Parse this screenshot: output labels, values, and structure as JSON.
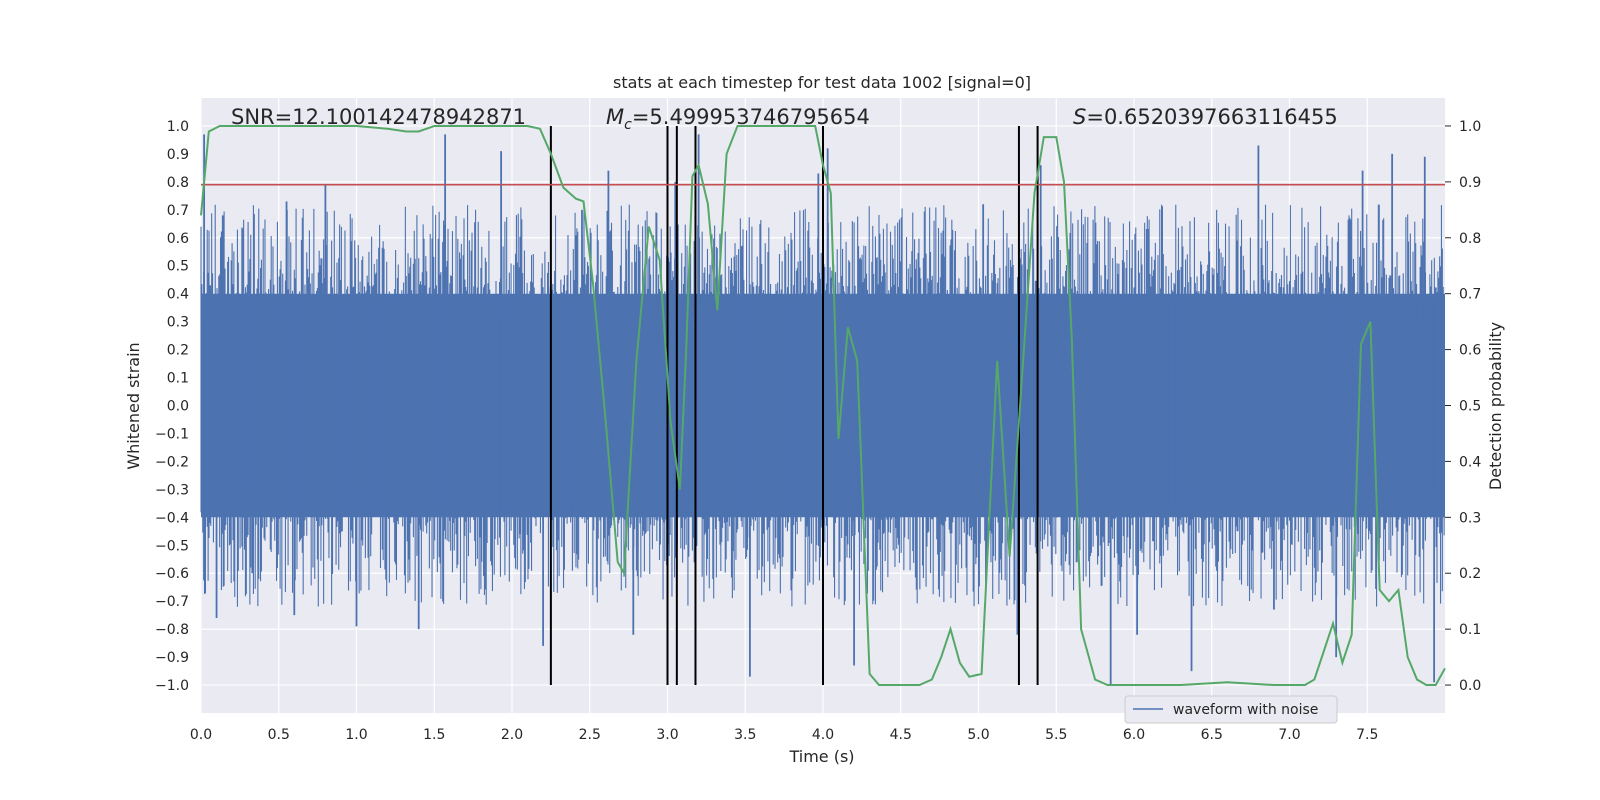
{
  "chart_data": {
    "type": "line",
    "title": "stats at each timestep for test data 1002 [signal=0]",
    "xlabel": "Time (s)",
    "ylabel_left": "Whitened strain",
    "ylabel_right": "Detection probability",
    "xlim": [
      0.0,
      8.0
    ],
    "ylim_left": [
      -1.1,
      1.1
    ],
    "ylim_right": [
      -0.05,
      1.05
    ],
    "xticks": [
      "0.0",
      "0.5",
      "1.0",
      "1.5",
      "2.0",
      "2.5",
      "3.0",
      "3.5",
      "4.0",
      "4.5",
      "5.0",
      "5.5",
      "6.0",
      "6.5",
      "7.0",
      "7.5"
    ],
    "yticks_left": [
      "1.0",
      "0.9",
      "0.8",
      "0.7",
      "0.6",
      "0.5",
      "0.4",
      "0.3",
      "0.2",
      "0.1",
      "0.0",
      "−0.1",
      "−0.2",
      "−0.3",
      "−0.4",
      "−0.5",
      "−0.6",
      "−0.7",
      "−0.8",
      "−0.9",
      "−1.0"
    ],
    "yticks_right": [
      "1.0",
      "0.9",
      "0.8",
      "0.7",
      "0.6",
      "0.5",
      "0.4",
      "0.3",
      "0.2",
      "0.1",
      "0.0"
    ],
    "grid": true,
    "legend": {
      "label": "waveform with noise",
      "location": "lower-right"
    },
    "annotations": {
      "snr": "SNR=12.100142478942871",
      "mc_symbol": "M",
      "mc_sub": "c",
      "mc_value": "=5.499953746795654",
      "s_symbol": "S",
      "s_value": "=0.6520397663116455"
    },
    "colors": {
      "waveform": "#4c72b0",
      "probability": "#55a868",
      "threshold": "#c44e52",
      "event_lines": "#000000",
      "plot_bg": "#eaeaf2"
    },
    "waveform": {
      "name": "waveform with noise",
      "note": "dense whitened strain noise; envelope samples",
      "core_band": [
        -0.4,
        0.4
      ],
      "spikes": [
        {
          "x": 0.02,
          "y": 0.97
        },
        {
          "x": 0.06,
          "y": 0.43
        },
        {
          "x": 0.1,
          "y": -0.76
        },
        {
          "x": 0.14,
          "y": 0.68
        },
        {
          "x": 0.33,
          "y": -0.6
        },
        {
          "x": 0.55,
          "y": 0.73
        },
        {
          "x": 0.6,
          "y": -0.75
        },
        {
          "x": 0.8,
          "y": 0.79
        },
        {
          "x": 1.0,
          "y": -0.79
        },
        {
          "x": 1.4,
          "y": -0.8
        },
        {
          "x": 1.57,
          "y": 0.97
        },
        {
          "x": 1.93,
          "y": 0.91
        },
        {
          "x": 2.2,
          "y": -0.86
        },
        {
          "x": 2.45,
          "y": 0.7
        },
        {
          "x": 2.62,
          "y": 0.84
        },
        {
          "x": 2.78,
          "y": -0.82
        },
        {
          "x": 3.05,
          "y": 0.8
        },
        {
          "x": 3.2,
          "y": 0.97
        },
        {
          "x": 3.53,
          "y": -0.97
        },
        {
          "x": 3.97,
          "y": 0.83
        },
        {
          "x": 4.03,
          "y": 0.92
        },
        {
          "x": 4.2,
          "y": -0.93
        },
        {
          "x": 5.03,
          "y": 0.72
        },
        {
          "x": 5.25,
          "y": -0.82
        },
        {
          "x": 5.4,
          "y": 0.86
        },
        {
          "x": 5.85,
          "y": -1.0
        },
        {
          "x": 6.02,
          "y": -0.82
        },
        {
          "x": 6.37,
          "y": -0.95
        },
        {
          "x": 6.8,
          "y": 0.93
        },
        {
          "x": 6.9,
          "y": -0.73
        },
        {
          "x": 7.3,
          "y": -0.9
        },
        {
          "x": 7.47,
          "y": 0.84
        },
        {
          "x": 7.66,
          "y": 0.9
        },
        {
          "x": 7.87,
          "y": 0.89
        },
        {
          "x": 7.93,
          "y": -0.99
        }
      ]
    },
    "probability": {
      "name": "Detection probability",
      "points": [
        [
          0.0,
          0.84
        ],
        [
          0.05,
          0.99
        ],
        [
          0.12,
          1.0
        ],
        [
          0.3,
          1.0
        ],
        [
          0.6,
          1.0
        ],
        [
          1.0,
          1.0
        ],
        [
          1.2,
          0.995
        ],
        [
          1.32,
          0.99
        ],
        [
          1.4,
          0.99
        ],
        [
          1.5,
          1.0
        ],
        [
          1.8,
          1.0
        ],
        [
          1.95,
          1.0
        ],
        [
          2.1,
          1.0
        ],
        [
          2.18,
          0.995
        ],
        [
          2.25,
          0.95
        ],
        [
          2.33,
          0.89
        ],
        [
          2.41,
          0.87
        ],
        [
          2.46,
          0.865
        ],
        [
          2.52,
          0.72
        ],
        [
          2.6,
          0.48
        ],
        [
          2.68,
          0.22
        ],
        [
          2.72,
          0.2
        ],
        [
          2.8,
          0.58
        ],
        [
          2.88,
          0.82
        ],
        [
          2.95,
          0.76
        ],
        [
          3.02,
          0.47
        ],
        [
          3.08,
          0.35
        ],
        [
          3.12,
          0.6
        ],
        [
          3.16,
          0.91
        ],
        [
          3.2,
          0.93
        ],
        [
          3.26,
          0.86
        ],
        [
          3.32,
          0.67
        ],
        [
          3.38,
          0.95
        ],
        [
          3.45,
          1.0
        ],
        [
          3.6,
          1.0
        ],
        [
          3.8,
          1.0
        ],
        [
          3.95,
          1.0
        ],
        [
          4.0,
          0.93
        ],
        [
          4.05,
          0.88
        ],
        [
          4.1,
          0.44
        ],
        [
          4.16,
          0.64
        ],
        [
          4.22,
          0.58
        ],
        [
          4.3,
          0.02
        ],
        [
          4.36,
          0.0
        ],
        [
          4.5,
          0.0
        ],
        [
          4.62,
          0.0
        ],
        [
          4.7,
          0.01
        ],
        [
          4.76,
          0.05
        ],
        [
          4.82,
          0.1
        ],
        [
          4.88,
          0.04
        ],
        [
          4.94,
          0.015
        ],
        [
          5.02,
          0.02
        ],
        [
          5.12,
          0.58
        ],
        [
          5.2,
          0.23
        ],
        [
          5.28,
          0.55
        ],
        [
          5.36,
          0.88
        ],
        [
          5.42,
          0.98
        ],
        [
          5.5,
          0.98
        ],
        [
          5.55,
          0.9
        ],
        [
          5.6,
          0.62
        ],
        [
          5.66,
          0.1
        ],
        [
          5.75,
          0.01
        ],
        [
          5.83,
          0.0
        ],
        [
          6.0,
          0.0
        ],
        [
          6.3,
          0.0
        ],
        [
          6.6,
          0.005
        ],
        [
          6.9,
          0.0
        ],
        [
          7.1,
          0.0
        ],
        [
          7.16,
          0.01
        ],
        [
          7.22,
          0.06
        ],
        [
          7.28,
          0.11
        ],
        [
          7.34,
          0.04
        ],
        [
          7.4,
          0.09
        ],
        [
          7.46,
          0.61
        ],
        [
          7.52,
          0.65
        ],
        [
          7.58,
          0.17
        ],
        [
          7.64,
          0.15
        ],
        [
          7.7,
          0.17
        ],
        [
          7.76,
          0.05
        ],
        [
          7.82,
          0.01
        ],
        [
          7.88,
          0.0
        ],
        [
          7.94,
          0.0
        ],
        [
          8.0,
          0.03
        ]
      ]
    },
    "threshold": {
      "value": 0.79
    },
    "event_lines": [
      2.25,
      3.0,
      3.06,
      3.18,
      4.0,
      5.26,
      5.38
    ]
  }
}
